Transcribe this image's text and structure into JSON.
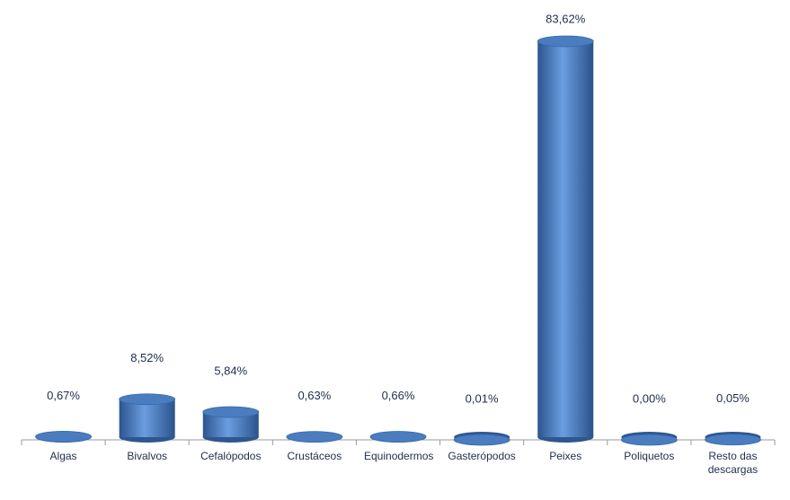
{
  "chart_data": {
    "type": "bar",
    "categories": [
      "Algas",
      "Bivalvos",
      "Cefalópodos",
      "Crustáceos",
      "Equinodermos",
      "Gasterópodos",
      "Peixes",
      "Poliquetos",
      "Resto das descargas"
    ],
    "values": [
      0.67,
      8.52,
      5.84,
      0.63,
      0.66,
      0.01,
      83.62,
      0.0,
      0.05
    ],
    "value_labels": [
      "0,67%",
      "8,52%",
      "5,84%",
      "0,63%",
      "0,66%",
      "0,01%",
      "83,62%",
      "0,00%",
      "0,05%"
    ],
    "color": "#4f81bd"
  }
}
